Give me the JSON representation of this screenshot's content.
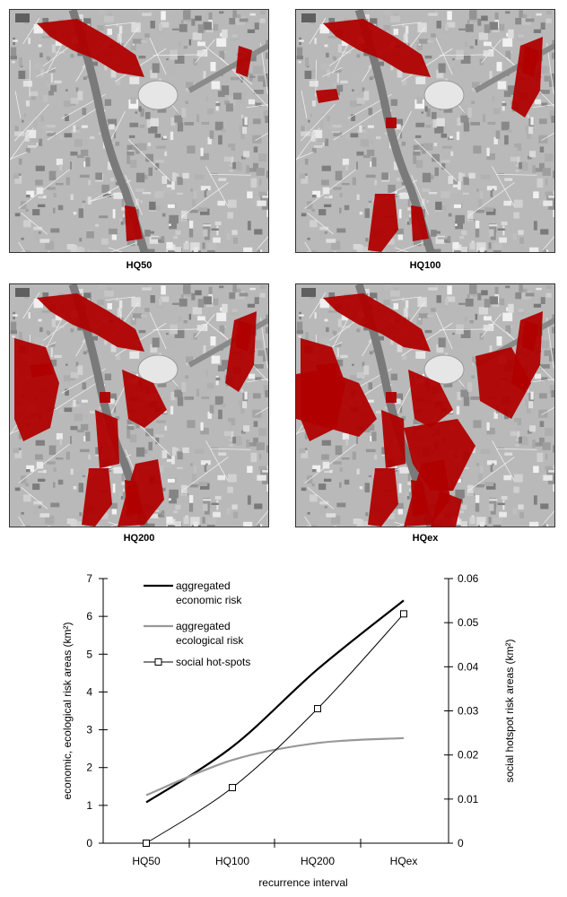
{
  "colors": {
    "flood": "#b00000",
    "economic": "#000000",
    "ecological": "#999999",
    "social": "#000000",
    "map_base": "#b9b9b9"
  },
  "maps": [
    {
      "label": "HQ50",
      "extent_level": 1
    },
    {
      "label": "HQ100",
      "extent_level": 2
    },
    {
      "label": "HQ200",
      "extent_level": 3
    },
    {
      "label": "HQex",
      "extent_level": 4
    }
  ],
  "chart_data": {
    "type": "line",
    "categories": [
      "HQ50",
      "HQ100",
      "HQ200",
      "HQex"
    ],
    "xlabel": "recurrence interval",
    "ylabel_left": "economic, ecological risk areas (km²)",
    "ylabel_right": "social hotspot risk areas (km²)",
    "ylim_left": [
      0,
      7
    ],
    "ylim_right": [
      0,
      0.06
    ],
    "yticks_left": [
      "0",
      "1",
      "2",
      "3",
      "4",
      "5",
      "6",
      "7"
    ],
    "yticks_right": [
      "0",
      "0.01",
      "0.02",
      "0.03",
      "0.04",
      "0.05",
      "0.06"
    ],
    "series": [
      {
        "name_lines": [
          "aggregated",
          "economic risk"
        ],
        "axis": "left",
        "values": [
          1.08,
          2.55,
          4.6,
          6.42
        ]
      },
      {
        "name_lines": [
          "aggregated",
          "ecological risk"
        ],
        "axis": "left",
        "values": [
          1.27,
          2.2,
          2.65,
          2.78
        ]
      },
      {
        "name": "social hot-spots",
        "axis": "right",
        "markers": "open-square",
        "values": [
          0,
          0.0126,
          0.0305,
          0.052
        ]
      }
    ],
    "legend_position": "top-left",
    "grid": false
  }
}
